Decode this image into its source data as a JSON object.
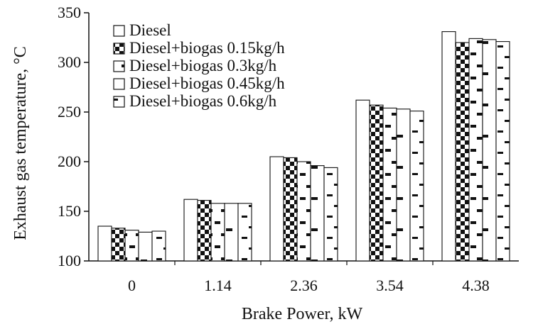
{
  "chart_data": {
    "type": "bar",
    "xlabel": "Brake Power, kW",
    "ylabel": "Exhaust  gas temperature,  °C",
    "ylim": [
      100,
      350
    ],
    "yticks": [
      100,
      150,
      200,
      250,
      300,
      350
    ],
    "grid": false,
    "legend_position": "top-left",
    "categories": [
      "0",
      "1.14",
      "2.36",
      "3.54",
      "4.38"
    ],
    "series": [
      {
        "name": "Diesel",
        "values": [
          135,
          162,
          205,
          262,
          331
        ]
      },
      {
        "name": "Diesel+biogas 0.15kg/h",
        "values": [
          133,
          161,
          204,
          257,
          320
        ]
      },
      {
        "name": "Diesel+biogas 0.3kg/h",
        "values": [
          131,
          158,
          200,
          254,
          324
        ]
      },
      {
        "name": "Diesel+biogas 0.45kg/h",
        "values": [
          129,
          158,
          196,
          253,
          323
        ]
      },
      {
        "name": "Diesel+biogas 0.6kg/h",
        "values": [
          130,
          158,
          194,
          251,
          321
        ]
      }
    ]
  }
}
